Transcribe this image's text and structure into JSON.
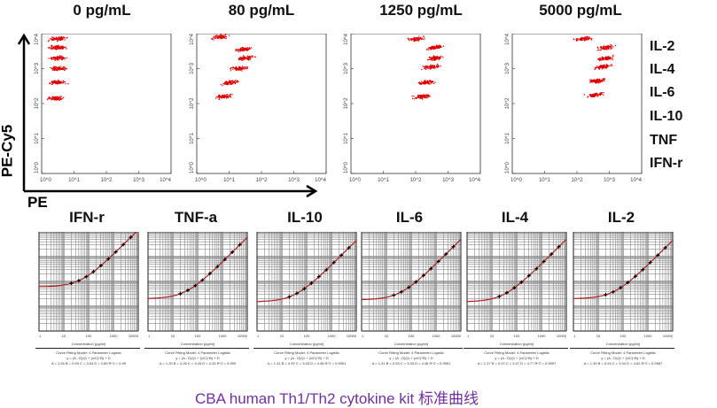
{
  "axes": {
    "y_label": "PE-Cy5",
    "x_label": "PE"
  },
  "bead_labels": [
    "IL-2",
    "IL-4",
    "IL-6",
    "IL-10",
    "TNF",
    "IFN-r"
  ],
  "curve_text": {
    "xlabel": "Concentration (pg/ml)",
    "model": "Curve Fitting Model: 4 Parameter Logistic",
    "equation": "y = (A - D)/(1 + (x/C)^B) + D"
  },
  "caption": "CBA human Th1/Th2 cytokine kit 标准曲线",
  "colors": {
    "dots": "#e00000",
    "curve": "#b02020",
    "grid": "#8a8a8a",
    "caption": "#7030a0"
  },
  "chart_data": [
    {
      "type": "scatter",
      "name": "flow-plots",
      "xlabel": "PE",
      "ylabel": "PE-Cy5",
      "xlim": [
        1,
        10000
      ],
      "ylim": [
        1,
        10000
      ],
      "scale": "log",
      "tick_labels": [
        "10^0",
        "10^1",
        "10^2",
        "10^3",
        "10^4"
      ],
      "panels": [
        {
          "title": "0 pg/mL",
          "clusters_log": [
            [
              0.5,
              3.85
            ],
            [
              0.5,
              3.6
            ],
            [
              0.5,
              3.3
            ],
            [
              0.5,
              3.0
            ],
            [
              0.5,
              2.6
            ],
            [
              0.45,
              2.15
            ]
          ]
        },
        {
          "title": "80 pg/mL",
          "clusters_log": [
            [
              0.7,
              3.9
            ],
            [
              1.45,
              3.55
            ],
            [
              1.5,
              3.3
            ],
            [
              1.3,
              3.0
            ],
            [
              1.05,
              2.6
            ],
            [
              0.85,
              2.2
            ]
          ]
        },
        {
          "title": "1250 pg/mL",
          "clusters_log": [
            [
              2.0,
              3.85
            ],
            [
              2.6,
              3.6
            ],
            [
              2.6,
              3.3
            ],
            [
              2.5,
              3.05
            ],
            [
              2.3,
              2.6
            ],
            [
              2.2,
              2.2
            ]
          ]
        },
        {
          "title": "5000 pg/mL",
          "clusters_log": [
            [
              2.2,
              3.85
            ],
            [
              2.9,
              3.6
            ],
            [
              2.9,
              3.3
            ],
            [
              2.8,
              3.05
            ],
            [
              2.65,
              2.65
            ],
            [
              2.55,
              2.25
            ]
          ]
        }
      ]
    },
    {
      "type": "line",
      "name": "standard-curves",
      "xlabel": "Concentration (pg/ml)",
      "xlim": [
        1,
        10000
      ],
      "ylim": [
        1,
        10000
      ],
      "scale": "log",
      "x_ticks": [
        "1",
        "10",
        "100",
        "1000",
        "10000"
      ],
      "standards_pg_ml": [
        20,
        40,
        80,
        156,
        312,
        625,
        1250,
        2500,
        5000
      ],
      "panels": [
        {
          "title": "IFN-r",
          "params": "A = 1.26   B = 0.93   C = 3.63   D = 3.89   R^2 = 0.99",
          "base": 60,
          "k": 1.2
        },
        {
          "title": "TNF-a",
          "params": "A = 1.29   B = 4.26   C = 3.43   D = 4.33   R^2 = 0.999",
          "base": 20,
          "k": 0.6
        },
        {
          "title": "IL-10",
          "params": "A = 1.31   B = 0.92   C = 3.45   D = 4.46   R^2 = 0.9991",
          "base": 15,
          "k": 0.45
        },
        {
          "title": "IL-6",
          "params": "A = 1.31   B = 0.93   C = 3.33   D = 4.46   R^2 = 0.9991",
          "base": 18,
          "k": 0.5
        },
        {
          "title": "IL-4",
          "params": "A = 1.37   B = 0.97   C = 3.37   D = 4.77   R^2 = 0.9997",
          "base": 15,
          "k": 0.5
        },
        {
          "title": "IL-2",
          "params": "A = 1.39   B = 0.94   C = 3.34   D = 4.62   R^2 = 0.9987",
          "base": 20,
          "k": 0.45
        }
      ]
    }
  ]
}
